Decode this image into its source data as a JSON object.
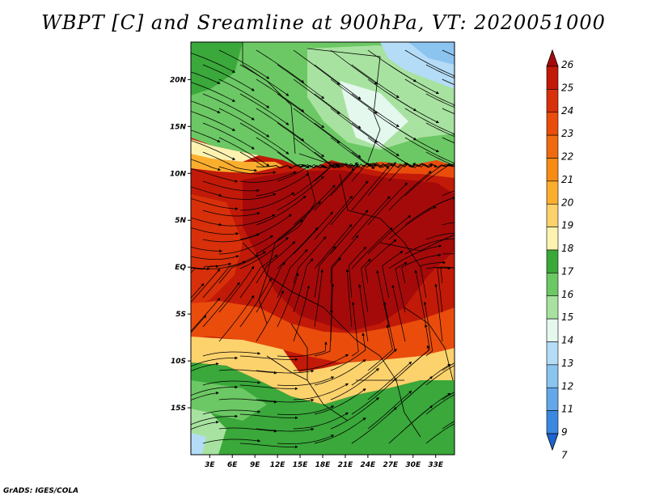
{
  "title": "WBPT [C] and Sreamline at 900hPa, VT: 2020051000",
  "credit": "GrADS: IGES/COLA",
  "map": {
    "lat_range": [
      -20,
      24
    ],
    "lon_range": [
      0.5,
      35.5
    ],
    "lat_ticks": [
      {
        "value": 20,
        "label": "20N"
      },
      {
        "value": 15,
        "label": "15N"
      },
      {
        "value": 10,
        "label": "10N"
      },
      {
        "value": 5,
        "label": "5N"
      },
      {
        "value": 0,
        "label": "EQ"
      },
      {
        "value": -5,
        "label": "5S"
      },
      {
        "value": -10,
        "label": "10S"
      },
      {
        "value": -15,
        "label": "15S"
      }
    ],
    "lon_ticks": [
      {
        "value": 3,
        "label": "3E"
      },
      {
        "value": 6,
        "label": "6E"
      },
      {
        "value": 9,
        "label": "9E"
      },
      {
        "value": 12,
        "label": "12E"
      },
      {
        "value": 15,
        "label": "15E"
      },
      {
        "value": 18,
        "label": "18E"
      },
      {
        "value": 21,
        "label": "21E"
      },
      {
        "value": 24,
        "label": "24E"
      },
      {
        "value": 27,
        "label": "27E"
      },
      {
        "value": 30,
        "label": "30E"
      },
      {
        "value": 33,
        "label": "33E"
      }
    ]
  },
  "colorbar": {
    "labels": [
      "26",
      "25",
      "24",
      "23",
      "22",
      "21",
      "20",
      "19",
      "18",
      "17",
      "16",
      "15",
      "14",
      "13",
      "12",
      "11",
      "9",
      "7"
    ],
    "colors": [
      "#a50a0a",
      "#c21a08",
      "#d8300a",
      "#ea4c0c",
      "#f06a10",
      "#f78c14",
      "#fbae2e",
      "#fcd26c",
      "#fdf2b0",
      "#3aa83a",
      "#6cc864",
      "#a8e2a0",
      "#e4f8ee",
      "#b4dcf6",
      "#8cc4f0",
      "#64a8ea",
      "#3c88e0",
      "#1c64d0"
    ]
  }
}
